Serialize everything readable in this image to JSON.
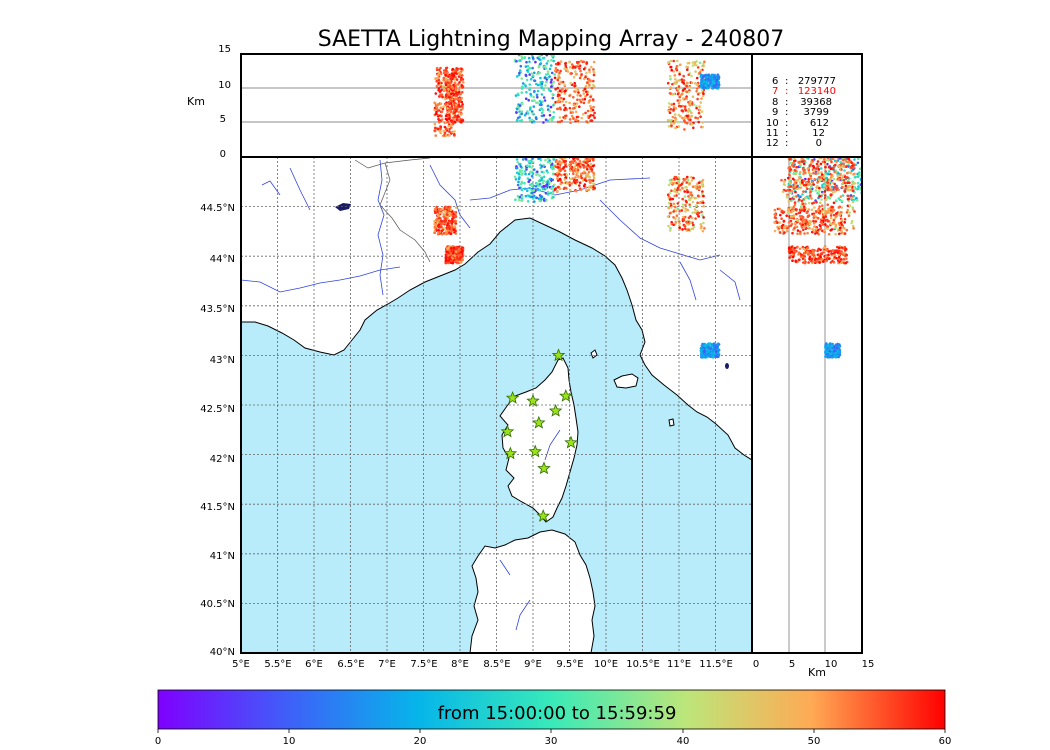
{
  "title": "SAETTA Lightning Mapping Array - 240807",
  "colors": {
    "sea": "#b8ecfa",
    "land": "#ffffff",
    "coast": "#000000",
    "rivers": "#3344dd",
    "borders": "#555555",
    "grid": "#666666",
    "station_fill": "#9be21a",
    "station_edge": "#2f6b00",
    "highlight_count": "#ff0000"
  },
  "top_panel": {
    "ylabel": "Km",
    "yticks": [
      "0",
      "5",
      "10",
      "15"
    ]
  },
  "side_panel": {
    "xlabel": "Km",
    "xticks": [
      "0",
      "5",
      "10",
      "15"
    ]
  },
  "map": {
    "lat_labels": [
      "40°N",
      "40.5°N",
      "41°N",
      "41.5°N",
      "42°N",
      "42.5°N",
      "43°N",
      "43.5°N",
      "44°N",
      "44.5°N"
    ],
    "lon_labels": [
      "5°E",
      "5.5°E",
      "6°E",
      "6.5°E",
      "7°E",
      "7.5°E",
      "8°E",
      "8.5°E",
      "9°E",
      "9.5°E",
      "10°E",
      "10.5°E",
      "11°E",
      "11.5°E"
    ]
  },
  "station_counts": [
    {
      "stations": "6",
      "sep": ":",
      "count": "279777",
      "highlight": false
    },
    {
      "stations": "7",
      "sep": ":",
      "count": "123140",
      "highlight": true
    },
    {
      "stations": "8",
      "sep": ":",
      "count": "39368",
      "highlight": false
    },
    {
      "stations": "9",
      "sep": ":",
      "count": "3799",
      "highlight": false
    },
    {
      "stations": "10",
      "sep": ":",
      "count": "612",
      "highlight": false
    },
    {
      "stations": "11",
      "sep": ":",
      "count": "12",
      "highlight": false
    },
    {
      "stations": "12",
      "sep": ":",
      "count": "0",
      "highlight": false
    }
  ],
  "colorbar": {
    "label": "from 15:00:00 to 15:59:59",
    "ticks": [
      "0",
      "10",
      "20",
      "30",
      "40",
      "50",
      "60"
    ]
  },
  "chart_data": {
    "type": "scatter",
    "title": "SAETTA Lightning Mapping Array - 240807",
    "map_extent": {
      "lon": [
        5,
        12
      ],
      "lat": [
        40,
        45
      ]
    },
    "altitude_range_km": [
      0,
      15
    ],
    "colorbar_range_minutes": [
      0,
      60
    ],
    "stations": [
      {
        "lon": 9.35,
        "lat": 43.0
      },
      {
        "lon": 8.72,
        "lat": 42.57
      },
      {
        "lon": 9.0,
        "lat": 42.54
      },
      {
        "lon": 9.45,
        "lat": 42.59
      },
      {
        "lon": 9.08,
        "lat": 42.32
      },
      {
        "lon": 9.31,
        "lat": 42.44
      },
      {
        "lon": 8.65,
        "lat": 42.23
      },
      {
        "lon": 9.03,
        "lat": 42.03
      },
      {
        "lon": 8.69,
        "lat": 42.01
      },
      {
        "lon": 9.52,
        "lat": 42.12
      },
      {
        "lon": 9.15,
        "lat": 41.86
      },
      {
        "lon": 9.14,
        "lat": 41.38
      }
    ],
    "clusters": [
      {
        "lon_range": [
          7.65,
          7.95
        ],
        "lat_range": [
          44.22,
          44.5
        ],
        "alt_range": [
          3,
          13
        ],
        "time_range": [
          45,
          60
        ]
      },
      {
        "lon_range": [
          8.75,
          9.3
        ],
        "lat_range": [
          44.55,
          45.0
        ],
        "alt_range": [
          5,
          15
        ],
        "time_range": [
          2,
          38
        ]
      },
      {
        "lon_range": [
          9.3,
          9.85
        ],
        "lat_range": [
          44.65,
          45.0
        ],
        "alt_range": [
          5,
          14
        ],
        "time_range": [
          42,
          60
        ]
      },
      {
        "lon_range": [
          10.85,
          11.35
        ],
        "lat_range": [
          44.25,
          44.8
        ],
        "alt_range": [
          4,
          14
        ],
        "time_range": [
          35,
          60
        ]
      },
      {
        "lon_range": [
          11.3,
          11.55
        ],
        "lat_range": [
          42.98,
          43.12
        ],
        "alt_range": [
          10,
          12
        ],
        "time_range": [
          8,
          22
        ]
      },
      {
        "lon_range": [
          7.8,
          8.05
        ],
        "lat_range": [
          43.93,
          44.1
        ],
        "alt_range": [
          5,
          13
        ],
        "time_range": [
          48,
          60
        ]
      }
    ]
  }
}
